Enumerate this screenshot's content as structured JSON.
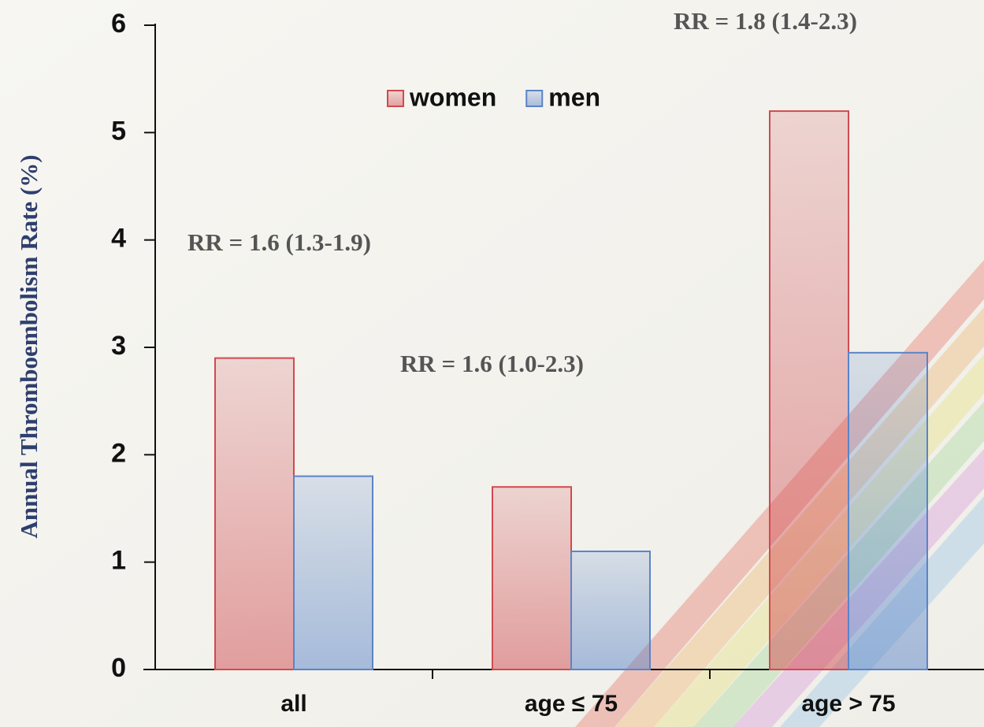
{
  "chart_data": {
    "type": "bar",
    "y_label": "Annual Thromboembolism Rate (%)",
    "categories": [
      "all",
      "age ≤ 75",
      "age > 75"
    ],
    "series": [
      {
        "name": "women",
        "color": "#d04a4f",
        "values": [
          2.9,
          1.7,
          5.2
        ]
      },
      {
        "name": "men",
        "color": "#5a84c8",
        "values": [
          1.8,
          1.1,
          2.95
        ]
      }
    ],
    "annotations": [
      "RR = 1.6 (1.3-1.9)",
      "RR = 1.6 (1.0-2.3)",
      "RR = 1.8 (1.4-2.3)"
    ],
    "ylim": [
      0,
      6
    ],
    "yticks": [
      0,
      1,
      2,
      3,
      4,
      5,
      6
    ],
    "legend": "top-center",
    "grid": false
  }
}
